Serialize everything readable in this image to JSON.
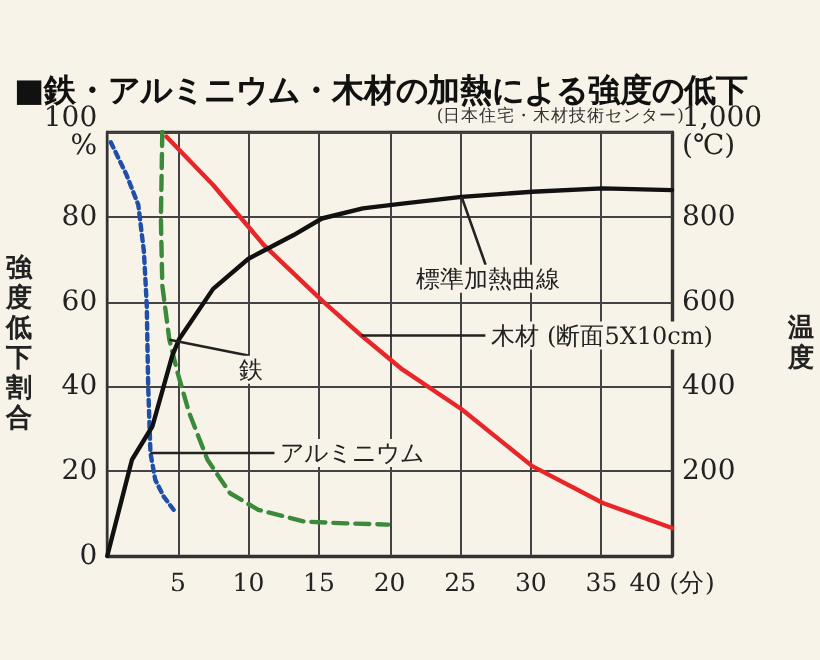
{
  "chart_data": {
    "type": "line",
    "title": "■鉄・アルミニウム・木材の加熱による強度の低下",
    "ylabel": "強度低下割合",
    "y2label": "温度",
    "annotations": [
      "(日本住宅・木材技術センター)"
    ],
    "xlim": [
      0,
      40
    ],
    "xticks": [
      5,
      10,
      15,
      20,
      25,
      30,
      35,
      {
        "value": 40,
        "label": "40 (分)"
      }
    ],
    "ylim": [
      0,
      100
    ],
    "yticks": [
      0,
      20,
      40,
      60,
      80,
      {
        "value": 100,
        "label": "100\n%"
      }
    ],
    "y2lim": [
      0,
      1000
    ],
    "y2ticks": [
      200,
      400,
      600,
      800,
      {
        "value": 1000,
        "label": "1,000\n(℃)"
      }
    ],
    "grid": true,
    "legend": false,
    "marker": "none",
    "series": [
      {
        "name": "アルミニウム",
        "color": "#1f4fa8",
        "line_style": "dotted",
        "x": [
          0.25,
          1.35,
          2.2,
          2.6,
          2.8,
          2.9,
          3.06,
          3.4,
          4.0,
          4.7
        ],
        "values": [
          97.6,
          90,
          82.8,
          71.7,
          59,
          40,
          24.3,
          18,
          14,
          10.9
        ]
      },
      {
        "name": "鉄",
        "color": "#3a8a3a",
        "line_style": "dashed",
        "x": [
          3.9,
          3.8,
          3.9,
          4.4,
          5.0,
          5.8,
          7.1,
          8.7,
          10.7,
          14,
          16.9,
          19.9
        ],
        "values": [
          100,
          79.6,
          63.8,
          51,
          43,
          33.8,
          22.7,
          14.8,
          10.9,
          8.1,
          7.7,
          7.4
        ]
      },
      {
        "name": "木材 (断面5X10cm)",
        "color": "#e8262a",
        "line_style": "solid",
        "x": [
          4.2,
          7.5,
          11.1,
          15.2,
          18,
          20.9,
          25.1,
          30.1,
          35.1,
          40
        ],
        "values": [
          98.9,
          87.5,
          73.3,
          60.3,
          52,
          44,
          34.6,
          21.2,
          12.5,
          6.6
        ]
      },
      {
        "name": "標準加熱曲線",
        "color": "#111111",
        "line_style": "solid",
        "axis": "y2",
        "x": [
          0,
          1.75,
          3.2,
          4.6,
          5.1,
          7.5,
          10,
          13.2,
          15.2,
          18.1,
          20.9,
          25.1,
          30.1,
          35.1,
          40
        ],
        "values": [
          0,
          227,
          306,
          472,
          512,
          630,
          701,
          757,
          796,
          820,
          831,
          847,
          859,
          867,
          863
        ]
      }
    ]
  }
}
